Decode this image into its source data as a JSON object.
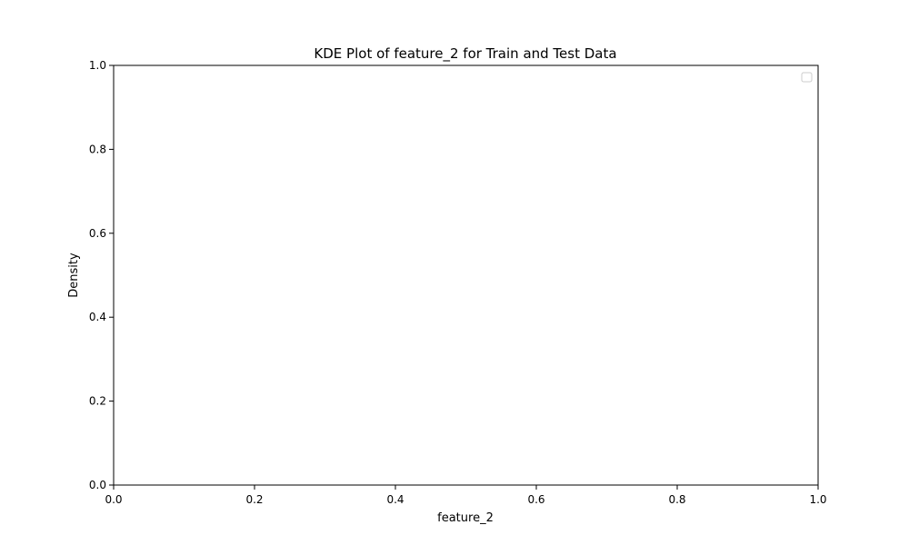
{
  "chart_data": {
    "type": "line",
    "title": "KDE Plot of feature_2 for Train and Test Data",
    "xlabel": "feature_2",
    "ylabel": "Density",
    "xlim": [
      0,
      1
    ],
    "ylim": [
      0,
      1
    ],
    "x_ticks": [
      "0.0",
      "0.2",
      "0.4",
      "0.6",
      "0.8",
      "1.0"
    ],
    "y_ticks": [
      "0.0",
      "0.2",
      "0.4",
      "0.6",
      "0.8",
      "1.0"
    ],
    "grid": false,
    "legend": {
      "placement": "upper-right",
      "entries": []
    },
    "series": []
  },
  "colors": {
    "axes": "#000000",
    "background": "#ffffff",
    "legend_border": "#cccccc"
  }
}
